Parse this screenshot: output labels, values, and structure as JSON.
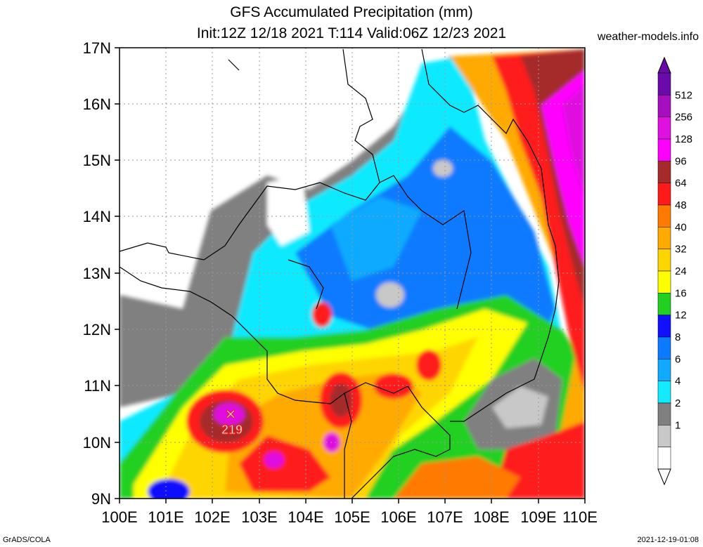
{
  "header": {
    "title": "GFS Accumulated Precipitation (mm)",
    "subtitle": "Init:12Z 12/18 2021 T:114 Valid:06Z 12/23 2021",
    "brand": "weather-models.info"
  },
  "axes": {
    "lat_labels": [
      "17N",
      "16N",
      "15N",
      "14N",
      "13N",
      "12N",
      "11N",
      "10N",
      "9N"
    ],
    "lon_labels": [
      "100E",
      "101E",
      "102E",
      "103E",
      "104E",
      "105E",
      "106E",
      "107E",
      "108E",
      "109E",
      "110E"
    ]
  },
  "legend": {
    "levels": [
      "512",
      "256",
      "128",
      "96",
      "64",
      "48",
      "40",
      "32",
      "24",
      "16",
      "12",
      "8",
      "6",
      "4",
      "2",
      "1"
    ],
    "colors": [
      "#6a0aa8",
      "#a50fbe",
      "#e010e0",
      "#ff00ff",
      "#a52a2a",
      "#ff1a1a",
      "#ff7a00",
      "#ffaa00",
      "#ffd500",
      "#ffff00",
      "#22d022",
      "#1010ff",
      "#0a7aff",
      "#11aaff",
      "#11eaff",
      "#808080",
      "#c8c8c8",
      "#ffffff"
    ]
  },
  "annotations": {
    "max_marker": "✕",
    "max_value": "219"
  },
  "footer": {
    "left": "GrADS/COLA",
    "right": "2021-12-19-01:08"
  },
  "palette": {
    "grey_light": "#c8c8c8",
    "grey": "#808080",
    "cyan": "#11eaff",
    "sky": "#11aaff",
    "blue_mid": "#0a7aff",
    "blue": "#1010ff",
    "green": "#22d022",
    "yellow": "#ffff00",
    "gold": "#ffd500",
    "orange_light": "#ffaa00",
    "orange": "#ff7a00",
    "red": "#ff1a1a",
    "brown": "#a52a2a",
    "magenta": "#ff00ff",
    "violet": "#e010e0"
  }
}
